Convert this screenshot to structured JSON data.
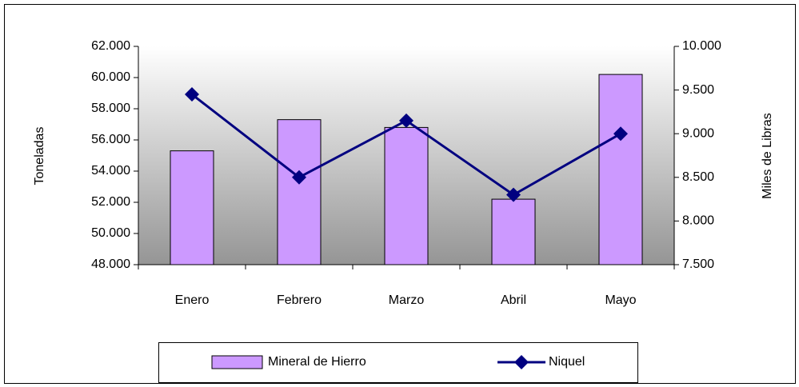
{
  "chart_data": {
    "type": "bar_line",
    "categories": [
      "Enero",
      "Febrero",
      "Marzo",
      "Abril",
      "Mayo"
    ],
    "series": [
      {
        "name": "Mineral de Hierro",
        "type": "bar",
        "color": "#cc99ff",
        "axis": "y",
        "values": [
          55300,
          57300,
          56800,
          52200,
          60200
        ]
      },
      {
        "name": "Niquel",
        "type": "line",
        "color": "#000080",
        "axis": "y2",
        "values": [
          9450,
          8500,
          9150,
          8300,
          9000
        ]
      }
    ],
    "ylabel": "Toneladas",
    "y2label": "Miles de Libras",
    "ylim": [
      48000,
      62000
    ],
    "yticks": [
      {
        "value": 48000,
        "label": "48.000"
      },
      {
        "value": 50000,
        "label": "50.000"
      },
      {
        "value": 52000,
        "label": "52.000"
      },
      {
        "value": 54000,
        "label": "54.000"
      },
      {
        "value": 56000,
        "label": "56.000"
      },
      {
        "value": 58000,
        "label": "58.000"
      },
      {
        "value": 60000,
        "label": "60.000"
      },
      {
        "value": 62000,
        "label": "62.000"
      }
    ],
    "y2lim": [
      7500,
      10000
    ],
    "y2ticks": [
      {
        "value": 7500,
        "label": "7.500"
      },
      {
        "value": 8000,
        "label": "8.000"
      },
      {
        "value": 8500,
        "label": "8.500"
      },
      {
        "value": 9000,
        "label": "9.000"
      },
      {
        "value": 9500,
        "label": "9.500"
      },
      {
        "value": 10000,
        "label": "10.000"
      }
    ],
    "legend": "bottom"
  }
}
